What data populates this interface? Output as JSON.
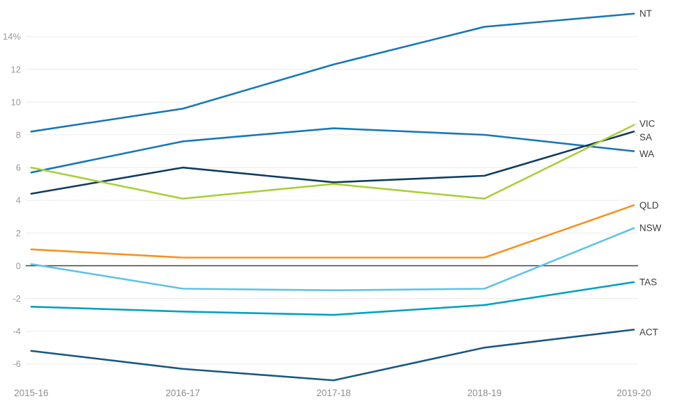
{
  "chart_data": {
    "type": "line",
    "title": "",
    "x_categories": [
      "2015-16",
      "2016-17",
      "2017-18",
      "2018-19",
      "2019-20"
    ],
    "y_axis": {
      "min": -7.5,
      "max": 15.6,
      "ticks": [
        {
          "label": "14%",
          "value": 14
        },
        {
          "label": "12",
          "value": 12
        },
        {
          "label": "10",
          "value": 10
        },
        {
          "label": "8",
          "value": 8
        },
        {
          "label": "6",
          "value": 6
        },
        {
          "label": "4",
          "value": 4
        },
        {
          "label": "2",
          "value": 2
        },
        {
          "label": "0",
          "value": 0
        },
        {
          "label": "-2",
          "value": -2
        },
        {
          "label": "-4",
          "value": -4
        },
        {
          "label": "-6",
          "value": -6
        }
      ]
    },
    "grid": true,
    "legend_position": "right-end-labels",
    "series": [
      {
        "name": "NT",
        "color": "#1878b6",
        "values": [
          8.2,
          9.6,
          12.3,
          14.6,
          15.4
        ],
        "label_dy": 0,
        "leader": false
      },
      {
        "name": "WA",
        "color": "#1878b6",
        "values": [
          5.7,
          7.6,
          8.4,
          8.0,
          7.0
        ],
        "label_dy": 4,
        "leader": false
      },
      {
        "name": "SA",
        "color": "#103c5f",
        "values": [
          4.4,
          6.0,
          5.1,
          5.5,
          8.2
        ],
        "label_dy": 8,
        "leader": true
      },
      {
        "name": "QLD",
        "color": "#f6921e",
        "values": [
          1.0,
          0.5,
          0.5,
          0.5,
          3.7
        ],
        "label_dy": 0,
        "leader": false
      },
      {
        "name": "NSW",
        "color": "#5ec3e5",
        "values": [
          0.1,
          -1.4,
          -1.5,
          -1.4,
          2.3
        ],
        "label_dy": 0,
        "leader": false
      },
      {
        "name": "TAS",
        "color": "#00a1c5",
        "values": [
          -2.5,
          -2.8,
          -3.0,
          -2.4,
          -1.0
        ],
        "label_dy": 0,
        "leader": false
      },
      {
        "name": "ACT",
        "color": "#1a5880",
        "values": [
          -5.2,
          -6.3,
          -7.0,
          -5.0,
          -3.9
        ],
        "label_dy": 4,
        "leader": false
      },
      {
        "name": "VIC",
        "color": "#aacf37",
        "values": [
          6.0,
          4.1,
          5.0,
          4.1,
          8.6
        ],
        "label_dy": -2,
        "leader": true
      }
    ],
    "styles": {
      "background": "#ffffff",
      "grid_color": "#ebebeb",
      "zero_line_color": "#404040",
      "axis_label_color": "#9b9b9b",
      "x_label_color": "#8e8e8e",
      "series_label_color": "#3d3d3d",
      "leader_color": "#a0a0a0"
    }
  }
}
